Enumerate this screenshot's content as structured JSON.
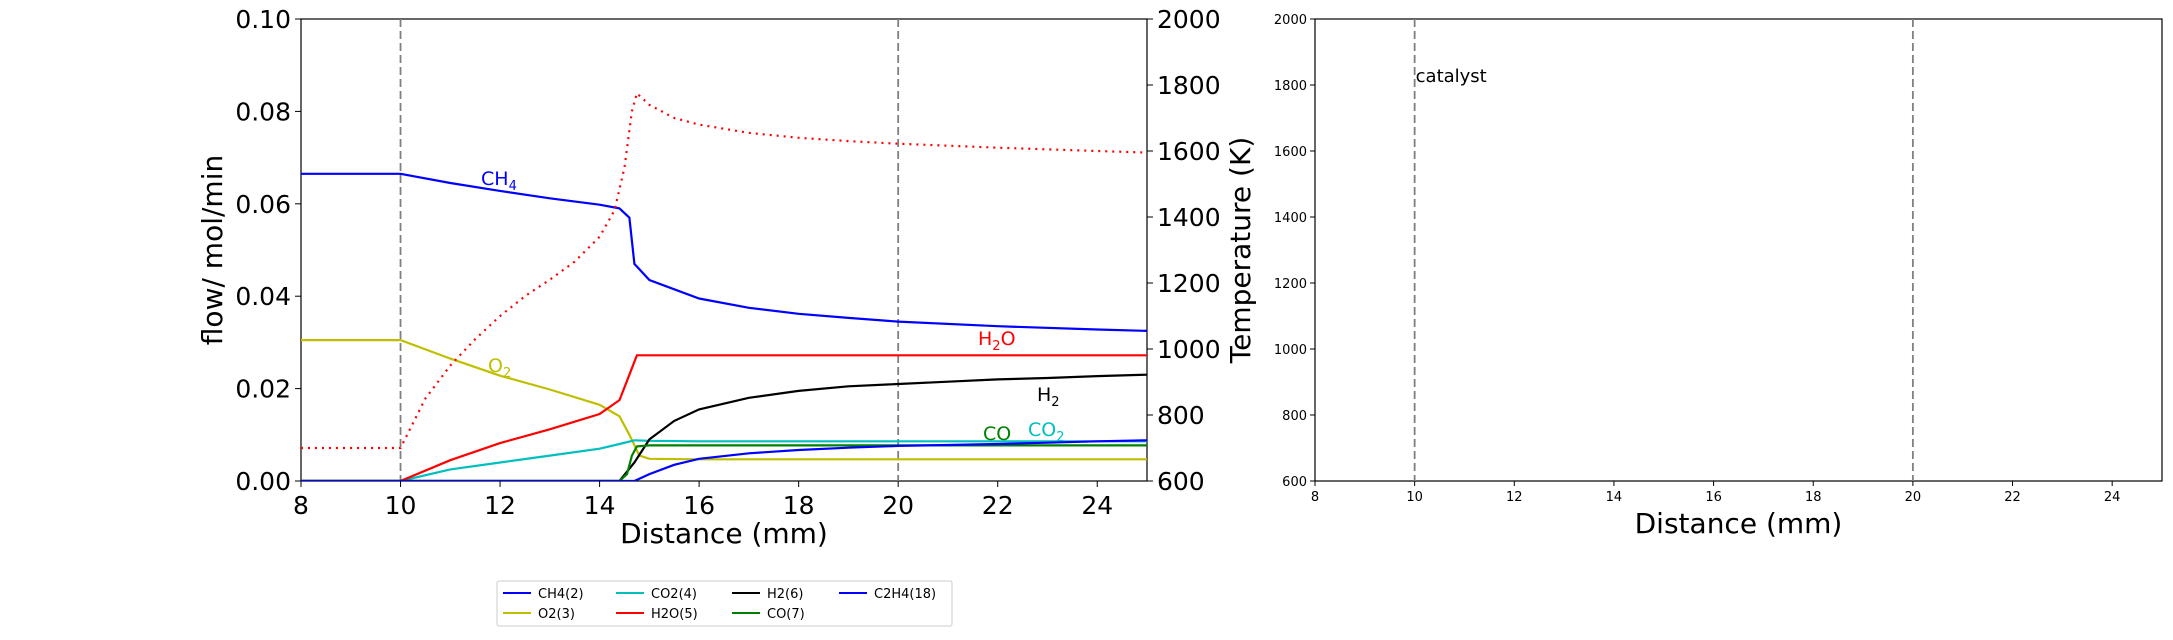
{
  "chart_data": [
    {
      "type": "line",
      "panel": "left",
      "xlabel": "Distance (mm)",
      "ylabel": "flow/ mol/min",
      "y2label": "Temperature (K)",
      "xlim": [
        8,
        25
      ],
      "ylim": [
        0,
        0.1
      ],
      "y2lim": [
        600,
        2000
      ],
      "xticks": [
        "8",
        "10",
        "12",
        "14",
        "16",
        "18",
        "20",
        "22",
        "24"
      ],
      "yticks": [
        "0.00",
        "0.02",
        "0.04",
        "0.06",
        "0.08",
        "0.10"
      ],
      "y2ticks": [
        "600",
        "800",
        "1000",
        "1200",
        "1400",
        "1600",
        "1800",
        "2000"
      ],
      "vlines": [
        10,
        20
      ],
      "grid": false,
      "series": [
        {
          "name": "CH4(2)",
          "label": "CH4",
          "color": "#0000ff",
          "x": [
            8,
            10,
            11,
            12,
            13,
            14,
            14.4,
            14.6,
            14.7,
            15,
            16,
            17,
            18,
            19,
            20,
            22,
            24,
            25
          ],
          "values": [
            0.0665,
            0.0665,
            0.0645,
            0.0628,
            0.0612,
            0.0598,
            0.059,
            0.057,
            0.047,
            0.0435,
            0.0395,
            0.0375,
            0.0362,
            0.0353,
            0.0345,
            0.0335,
            0.0328,
            0.0325
          ]
        },
        {
          "name": "O2(3)",
          "label": "O2",
          "color": "#bfbf00",
          "x": [
            8,
            10,
            11,
            12,
            13,
            14,
            14.4,
            14.6,
            14.8,
            15,
            16,
            18,
            20,
            22,
            24,
            25
          ],
          "values": [
            0.0305,
            0.0305,
            0.0265,
            0.0228,
            0.0198,
            0.0165,
            0.014,
            0.01,
            0.0055,
            0.0048,
            0.0047,
            0.0047,
            0.0047,
            0.0047,
            0.0047,
            0.0047
          ]
        },
        {
          "name": "CO2(4)",
          "label": "CO2",
          "color": "#00bfbf",
          "x": [
            8,
            10,
            11,
            12,
            13,
            14,
            14.4,
            14.7,
            15,
            16,
            18,
            20,
            22,
            24,
            25
          ],
          "values": [
            0,
            0,
            0.0025,
            0.004,
            0.0055,
            0.007,
            0.008,
            0.0088,
            0.0087,
            0.0086,
            0.0086,
            0.0086,
            0.0086,
            0.0086,
            0.0086
          ]
        },
        {
          "name": "H2O(5)",
          "label": "H2O",
          "color": "#ff0000",
          "x": [
            8,
            10,
            11,
            12,
            13,
            14,
            14.4,
            14.6,
            14.75,
            15,
            16,
            18,
            20,
            22,
            24,
            25
          ],
          "values": [
            0,
            0,
            0.0045,
            0.0082,
            0.0112,
            0.0145,
            0.0175,
            0.023,
            0.0272,
            0.0272,
            0.0272,
            0.0272,
            0.0272,
            0.0272,
            0.0272,
            0.0272
          ]
        },
        {
          "name": "H2(6)",
          "label": "H2",
          "color": "#000000",
          "x": [
            8,
            14.4,
            14.7,
            15,
            15.5,
            16,
            17,
            18,
            19,
            20,
            21,
            22,
            23,
            24,
            25
          ],
          "values": [
            0,
            0,
            0.004,
            0.009,
            0.013,
            0.0155,
            0.018,
            0.0195,
            0.0205,
            0.021,
            0.0215,
            0.022,
            0.0223,
            0.0227,
            0.023
          ]
        },
        {
          "name": "CO(7)",
          "label": "CO",
          "color": "#008000",
          "x": [
            8,
            14.4,
            14.55,
            14.65,
            14.75,
            15,
            16,
            18,
            20,
            22,
            24,
            25
          ],
          "values": [
            0,
            0,
            0.0015,
            0.0055,
            0.0075,
            0.0077,
            0.0077,
            0.0077,
            0.0077,
            0.0077,
            0.0077,
            0.0077
          ]
        },
        {
          "name": "C2H4(18)",
          "label": "",
          "color": "#0000ff",
          "x": [
            8,
            14.7,
            15,
            15.5,
            16,
            17,
            18,
            19,
            20,
            21,
            22,
            23,
            24,
            25
          ],
          "values": [
            0,
            0,
            0.0015,
            0.0035,
            0.0048,
            0.006,
            0.0067,
            0.0072,
            0.0076,
            0.0078,
            0.008,
            0.0083,
            0.0086,
            0.0088
          ]
        },
        {
          "name": "Temperature",
          "label": "",
          "color": "#ff0000",
          "dashed": true,
          "axis": "right",
          "x": [
            8,
            10,
            10.5,
            11,
            11.5,
            12,
            12.5,
            13,
            13.5,
            14,
            14.3,
            14.5,
            14.65,
            14.75,
            15,
            15.5,
            16,
            17,
            18,
            19,
            20,
            22,
            24,
            25
          ],
          "values": [
            700,
            700,
            850,
            950,
            1030,
            1100,
            1160,
            1210,
            1265,
            1340,
            1420,
            1550,
            1720,
            1775,
            1740,
            1700,
            1680,
            1655,
            1640,
            1630,
            1622,
            1610,
            1600,
            1595
          ]
        }
      ],
      "annotations": [
        {
          "text": "CH",
          "sub": "4",
          "color": "#0000ff"
        },
        {
          "text": "O",
          "sub": "2",
          "color": "#bfbf00"
        },
        {
          "text": "H",
          "sub": "2",
          "text2": "O",
          "color": "#ff0000"
        },
        {
          "text": "H",
          "sub": "2",
          "color": "#000000"
        },
        {
          "text": "CO",
          "sub": "",
          "color": "#008000"
        },
        {
          "text": "CO",
          "sub": "2",
          "color": "#00bfbf"
        }
      ],
      "legend": {
        "placement": "bottom",
        "ncol": 4,
        "entries": [
          "CH4(2)",
          "O2(3)",
          "CO2(4)",
          "H2O(5)",
          "H2(6)",
          "CO(7)",
          "C2H4(18)"
        ]
      }
    },
    {
      "type": "line",
      "panel": "right",
      "xlabel": "Distance (mm)",
      "xlim": [
        8,
        25
      ],
      "ylim": [
        600,
        2000
      ],
      "xticks": [
        "8",
        "10",
        "12",
        "14",
        "16",
        "18",
        "20",
        "22",
        "24"
      ],
      "yticks": [
        "600",
        "800",
        "1000",
        "1200",
        "1400",
        "1600",
        "1800",
        "2000"
      ],
      "vlines": [
        10,
        20
      ],
      "annotations": [
        {
          "text": "catalyst"
        }
      ],
      "series": []
    }
  ]
}
